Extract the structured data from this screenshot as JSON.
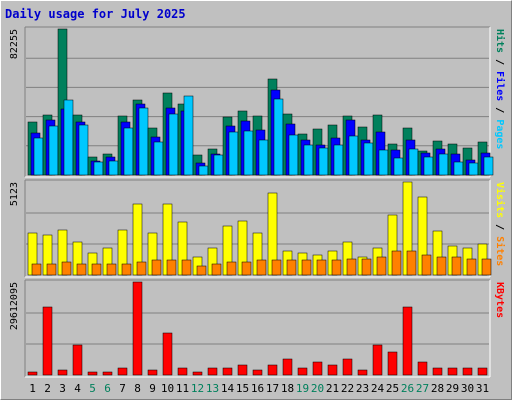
{
  "title": "Daily usage for July 2025",
  "chart_data": {
    "type": "bar",
    "title": "Daily usage for July 2025",
    "categories": [
      "1",
      "2",
      "3",
      "4",
      "5",
      "6",
      "7",
      "8",
      "9",
      "10",
      "11",
      "12",
      "13",
      "14",
      "15",
      "16",
      "17",
      "18",
      "19",
      "20",
      "21",
      "22",
      "23",
      "24",
      "25",
      "26",
      "27",
      "28",
      "29",
      "30",
      "31"
    ],
    "weekend_categories": [
      "5",
      "6",
      "12",
      "13",
      "19",
      "20",
      "26",
      "27"
    ],
    "panels": [
      {
        "id": "top",
        "max_label": "82255",
        "ymax": 82255,
        "axis_labels": [
          {
            "text": "Hits",
            "color": "#00805c"
          },
          {
            "text": "Files",
            "color": "#0000ff"
          },
          {
            "text": "Pages",
            "color": "#00c8ff"
          }
        ],
        "series": [
          {
            "name": "Hits",
            "color": "#00805c",
            "values": [
              30100,
              33900,
              82255,
              33900,
              10300,
              11900,
              33300,
              42000,
              26600,
              46000,
              40200,
              11300,
              14800,
              32900,
              36300,
              33000,
              53900,
              34600,
              23300,
              26100,
              28100,
              33400,
              27100,
              33900,
              17600,
              26700,
              13300,
              19300,
              17600,
              15000,
              18800
            ]
          },
          {
            "name": "Files",
            "color": "#0000ff",
            "values": [
              23900,
              30900,
              37400,
              30100,
              8000,
              9900,
              29800,
              40200,
              21500,
              38000,
              36300,
              6800,
              12100,
              27500,
              30500,
              25200,
              47700,
              28800,
              19700,
              17100,
              21100,
              31100,
              19900,
              24000,
              14100,
              19600,
              12400,
              14700,
              11600,
              8400,
              12500
            ]
          },
          {
            "name": "Pages",
            "color": "#00c8ff",
            "values": [
              20600,
              27500,
              42000,
              28100,
              7500,
              8000,
              26200,
              37500,
              18800,
              34200,
              44300,
              5000,
              11100,
              24300,
              25000,
              19700,
              43000,
              22800,
              16700,
              15000,
              17100,
              22100,
              17900,
              14000,
              9300,
              14700,
              9900,
              11800,
              7100,
              6800,
              10000
            ]
          }
        ]
      },
      {
        "id": "middle",
        "max_label": "5123",
        "ymax": 5123,
        "axis_labels": [
          {
            "text": "Visits",
            "color": "#ffff00"
          },
          {
            "text": "/",
            "color": "#000000"
          },
          {
            "text": "Sites",
            "color": "#ff8000"
          }
        ],
        "series": [
          {
            "name": "Visits",
            "color": "#ffff00",
            "values": [
              2300,
              2200,
              2500,
              1800,
              1200,
              1500,
              2500,
              3900,
              2300,
              3900,
              2900,
              1000,
              1500,
              2700,
              3000,
              2300,
              4500,
              1300,
              1200,
              1100,
              1300,
              1800,
              1000,
              1500,
              3300,
              5123,
              4300,
              2400,
              1600,
              1500,
              1700
            ]
          },
          {
            "name": "Sites",
            "color": "#ff8000",
            "values": [
              600,
              600,
              700,
              600,
              600,
              600,
              600,
              700,
              800,
              800,
              800,
              500,
              600,
              700,
              700,
              800,
              800,
              800,
              800,
              800,
              800,
              900,
              900,
              1000,
              1300,
              1300,
              1100,
              1000,
              1000,
              900,
              900
            ]
          }
        ]
      },
      {
        "id": "bottom",
        "max_label": "29612095",
        "ymax": 29612095,
        "axis_labels": [
          {
            "text": "KBytes",
            "color": "#ff0000"
          }
        ],
        "series": [
          {
            "name": "KBytes",
            "color": "#ff0000",
            "values": [
              1060000,
              21600000,
              1690000,
              9620000,
              840000,
              840000,
              2240000,
              29612095,
              1640000,
              13320000,
              2240000,
              820000,
              2240000,
              2240000,
              3160000,
              1640000,
              3160000,
              4980000,
              2240000,
              4080000,
              3160000,
              4980000,
              1640000,
              9620000,
              7380000,
              21600000,
              4080000,
              2240000,
              2240000,
              2240000,
              2240000
            ]
          }
        ]
      }
    ]
  }
}
